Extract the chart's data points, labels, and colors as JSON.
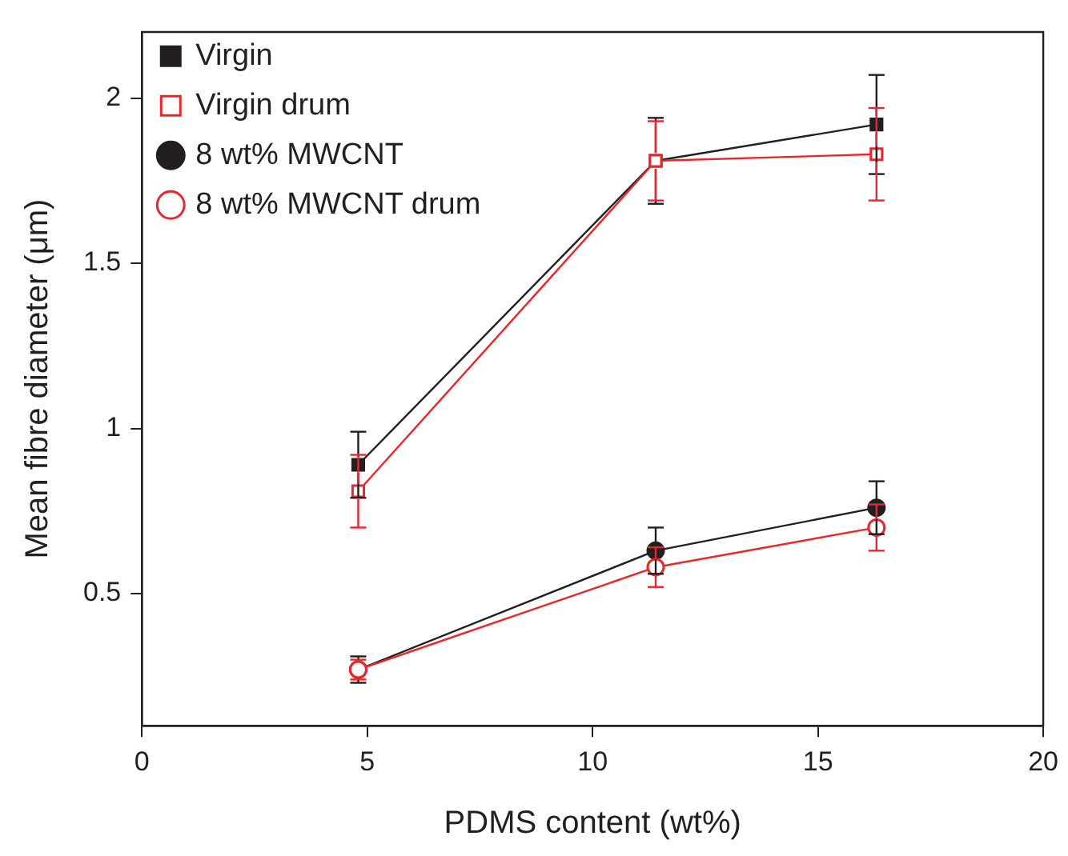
{
  "chart_data": {
    "type": "line",
    "xlabel": "PDMS content (wt%)",
    "ylabel": "Mean fibre diameter (μm)",
    "x": [
      4.8,
      11.4,
      16.3
    ],
    "xlim": [
      0,
      20
    ],
    "xticks": [
      0,
      5,
      10,
      15,
      20
    ],
    "ylim": [
      0.1,
      2.2
    ],
    "yticks": [
      0.5,
      1.0,
      1.5,
      2.0
    ],
    "grid": false,
    "legend": "top left",
    "series": [
      {
        "name": "Virgin",
        "color": "#231f20",
        "marker": "square",
        "values": [
          0.89,
          1.81,
          1.92
        ],
        "errors": [
          0.1,
          0.13,
          0.15
        ]
      },
      {
        "name": "Virgin drum",
        "color": "#e8262b",
        "marker": "square",
        "values": [
          0.81,
          1.81,
          1.83
        ],
        "errors": [
          0.11,
          0.12,
          0.14
        ]
      },
      {
        "name": "8 wt% MWCNT",
        "color": "#231f20",
        "marker": "circle",
        "values": [
          0.27,
          0.63,
          0.76
        ],
        "errors": [
          0.04,
          0.07,
          0.08
        ]
      },
      {
        "name": "8 wt% MWCNT drum",
        "color": "#e8262b",
        "marker": "circle",
        "values": [
          0.27,
          0.58,
          0.7
        ],
        "errors": [
          0.03,
          0.06,
          0.07
        ]
      }
    ]
  }
}
